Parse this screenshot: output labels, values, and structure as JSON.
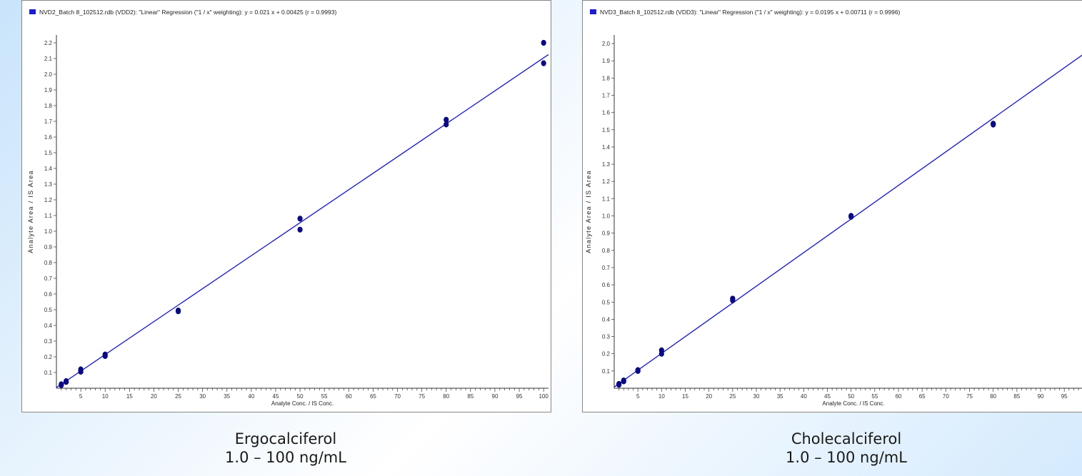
{
  "colors": {
    "line": "#1515c8",
    "point": "#0a0a8c",
    "legend_swatch": "#1c1cd0",
    "axis": "#333333",
    "tick_text": "#333333"
  },
  "chart_data": [
    {
      "type": "scatter",
      "title": "NVD2_Batch 8_102512.rdb (VDD2): \"Linear\" Regression (\"1 / x\" weighting): y = 0.021 x + 0.00425 (r = 0.9993)",
      "xlabel": "",
      "ylabel": "Analyte Area / IS Area",
      "xlim": [
        0,
        101
      ],
      "ylim": [
        0,
        2.25
      ],
      "xticks": [
        5,
        10,
        15,
        20,
        25,
        30,
        35,
        40,
        45,
        50,
        55,
        60,
        65,
        70,
        75,
        80,
        85,
        90,
        95,
        100
      ],
      "yticks": [
        "0.1",
        "0.2",
        "0.3",
        "0.4",
        "0.5",
        "0.6",
        "0.7",
        "0.8",
        "0.9",
        "1.0",
        "1.1",
        "1.2",
        "1.3",
        "1.4",
        "1.5",
        "1.6",
        "1.7",
        "1.8",
        "1.9",
        "2.0",
        "2.1",
        "2.2"
      ],
      "fit": {
        "slope": 0.021,
        "intercept": 0.00425
      },
      "points": [
        [
          1,
          0.025
        ],
        [
          1,
          0.02
        ],
        [
          2,
          0.045
        ],
        [
          2,
          0.04
        ],
        [
          5,
          0.12
        ],
        [
          5,
          0.105
        ],
        [
          10,
          0.215
        ],
        [
          10,
          0.205
        ],
        [
          25,
          0.495
        ],
        [
          25,
          0.49
        ],
        [
          50,
          1.08
        ],
        [
          50,
          1.01
        ],
        [
          80,
          1.71
        ],
        [
          80,
          1.68
        ],
        [
          100,
          2.2
        ],
        [
          100,
          2.07
        ]
      ],
      "grid": false,
      "legend": "top-left"
    },
    {
      "type": "scatter",
      "title": "NVD3_Batch 8_102512.rdb (VDD3): \"Linear\" Regression (\"1 / x\" weighting): y = 0.0195 x + 0.00711 (r = 0.9996)",
      "xlabel": "Analyte Conc. / IS Conc.",
      "ylabel": "Analyte Area / IS Area",
      "xlim": [
        0,
        101
      ],
      "ylim": [
        0,
        2.05
      ],
      "xticks": [
        5,
        10,
        15,
        20,
        25,
        30,
        35,
        40,
        45,
        50,
        55,
        60,
        65,
        70,
        75,
        80,
        85,
        90,
        95
      ],
      "yticks": [
        "0.1",
        "0.2",
        "0.3",
        "0.4",
        "0.5",
        "0.6",
        "0.7",
        "0.8",
        "0.9",
        "1.0",
        "1.1",
        "1.2",
        "1.3",
        "1.4",
        "1.5",
        "1.6",
        "1.7",
        "1.8",
        "1.9",
        "2.0"
      ],
      "fit": {
        "slope": 0.0195,
        "intercept": 0.00711
      },
      "points": [
        [
          1,
          0.025
        ],
        [
          1,
          0.02
        ],
        [
          2,
          0.045
        ],
        [
          2,
          0.04
        ],
        [
          5,
          0.105
        ],
        [
          5,
          0.1
        ],
        [
          10,
          0.22
        ],
        [
          10,
          0.2
        ],
        [
          25,
          0.52
        ],
        [
          25,
          0.51
        ],
        [
          50,
          1.0
        ],
        [
          50,
          0.995
        ],
        [
          80,
          1.535
        ],
        [
          80,
          1.53
        ]
      ],
      "grid": false,
      "legend": "top-left"
    }
  ],
  "captions": [
    {
      "name": "Ergocalciferol",
      "range": "1.0 – 100 ng/mL"
    },
    {
      "name": "Cholecalciferol",
      "range": "1.0 – 100 ng/mL"
    }
  ],
  "left_axis_label_x": "Analyte Conc. / IS Conc."
}
